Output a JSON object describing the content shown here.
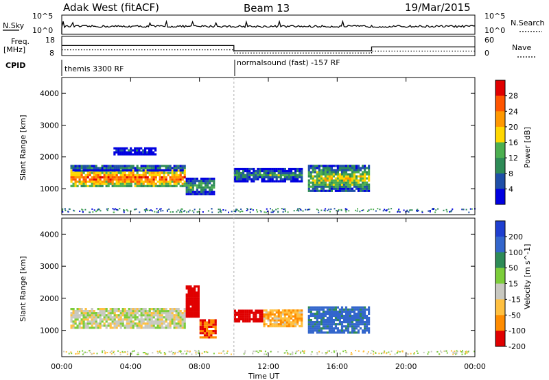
{
  "header": {
    "title": "Adak West (fitACF)",
    "beam": "Beam 13",
    "date": "19/Mar/2015"
  },
  "top_panels": {
    "nsky_label": "N.Sky",
    "nsky_ticks": [
      "10^5",
      "10^0"
    ],
    "nsearch_label": "N.Search",
    "nsearch_ticks": [
      "10^5",
      "10^0"
    ],
    "freq_label_line1": "Freq.",
    "freq_label_line2": "[MHz]",
    "freq_ticks": [
      "18",
      "8"
    ],
    "nave_label": "Nave",
    "nave_ticks": [
      "60",
      "0"
    ],
    "cpid_label": "CPID",
    "cpid_modes": [
      {
        "name": "themis 3300 RF",
        "start_hour": 0,
        "end_hour": 10
      },
      {
        "name": "normalsound (fast) -157 RF",
        "start_hour": 10,
        "end_hour": 24
      }
    ],
    "freq_series_mhz": [
      {
        "hour": 0,
        "value": 13.2
      },
      {
        "hour": 10,
        "value": 13.2
      },
      {
        "hour": 10,
        "value": 10.5
      },
      {
        "hour": 18,
        "value": 10.5
      },
      {
        "hour": 18,
        "value": 12.5
      },
      {
        "hour": 24,
        "value": 12.5
      }
    ]
  },
  "chart_data": [
    {
      "type": "heatmap",
      "title": "Power",
      "ylabel": "Slant Range [km]",
      "xlabel": "Time UT",
      "x_ticks": [
        "00:00",
        "04:00",
        "08:00",
        "12:00",
        "16:00",
        "20:00",
        "00:00"
      ],
      "xlim_hours": [
        0,
        24
      ],
      "ylim": [
        180,
        4500
      ],
      "y_ticks": [
        1000,
        2000,
        3000,
        4000
      ],
      "colorbar": {
        "label": "Power [dB]",
        "ticks": [
          4,
          8,
          12,
          16,
          20,
          24,
          28
        ],
        "range": [
          0,
          32
        ],
        "colors": [
          "#0000e0",
          "#1f4fa8",
          "#2e8b57",
          "#4caf50",
          "#ffd700",
          "#ff9800",
          "#ff5500",
          "#e00000"
        ]
      },
      "regions": [
        {
          "t0": 0.5,
          "t1": 7.2,
          "r0": 1050,
          "r1": 1600,
          "level": 26
        },
        {
          "t0": 0.5,
          "t1": 7.2,
          "r0": 1550,
          "r1": 1750,
          "level": 12
        },
        {
          "t0": 7.2,
          "t1": 8.9,
          "r0": 800,
          "r1": 1350,
          "level": 14
        },
        {
          "t0": 3.0,
          "t1": 5.5,
          "r0": 2050,
          "r1": 2300,
          "level": 6
        },
        {
          "t0": 10.0,
          "t1": 14.0,
          "r0": 1200,
          "r1": 1650,
          "level": 12
        },
        {
          "t0": 14.3,
          "t1": 17.9,
          "r0": 900,
          "r1": 1750,
          "level": 18
        }
      ]
    },
    {
      "type": "heatmap",
      "title": "Velocity",
      "ylabel": "Slant Range [km]",
      "xlabel": "Time UT",
      "x_ticks": [
        "00:00",
        "04:00",
        "08:00",
        "12:00",
        "16:00",
        "20:00",
        "00:00"
      ],
      "xlim_hours": [
        0,
        24
      ],
      "ylim": [
        180,
        4500
      ],
      "y_ticks": [
        1000,
        2000,
        3000,
        4000
      ],
      "colorbar": {
        "label": "Velocity [m s^-1]",
        "ticks": [
          200,
          100,
          50,
          15,
          -15,
          -50,
          -100,
          -200
        ],
        "colors": [
          "#1f3fd0",
          "#3366cc",
          "#2e8b57",
          "#7ccd3a",
          "#c8c8c0",
          "#ffc040",
          "#ff8c00",
          "#e00000"
        ]
      },
      "regions": [
        {
          "t0": 0.5,
          "t1": 7.2,
          "r0": 1050,
          "r1": 1700,
          "level": 0
        },
        {
          "t0": 7.2,
          "t1": 8.0,
          "r0": 1400,
          "r1": 2400,
          "level": -150
        },
        {
          "t0": 8.0,
          "t1": 9.0,
          "r0": 750,
          "r1": 1350,
          "level": -90
        },
        {
          "t0": 10.0,
          "t1": 11.7,
          "r0": 1250,
          "r1": 1650,
          "level": -200
        },
        {
          "t0": 11.7,
          "t1": 14.0,
          "r0": 1100,
          "r1": 1650,
          "level": -40
        },
        {
          "t0": 14.3,
          "t1": 17.9,
          "r0": 900,
          "r1": 1750,
          "level": 120
        }
      ]
    }
  ]
}
